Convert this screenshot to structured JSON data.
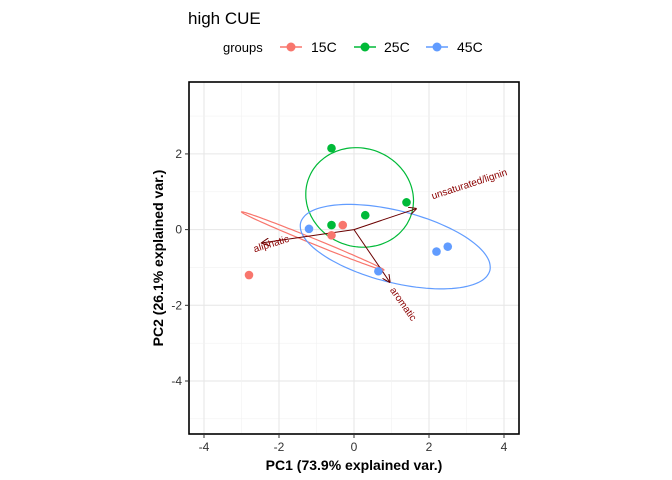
{
  "chart_data": {
    "type": "scatter",
    "title": "high CUE",
    "xlabel": "PC1 (73.9% explained var.)",
    "ylabel": "PC2 (26.1% explained var.)",
    "xlim": [
      -4.4,
      4.4
    ],
    "ylim": [
      -5.4,
      3.9
    ],
    "x_ticks": [
      -4,
      -2,
      0,
      2,
      4
    ],
    "y_ticks": [
      -4,
      -2,
      0,
      2
    ],
    "x_tick_labels": [
      "-4",
      "-2",
      "0",
      "2",
      "4"
    ],
    "y_tick_labels": [
      "-4",
      "-2",
      "0",
      "2"
    ],
    "grid": true,
    "legend": {
      "title": "groups",
      "placement": "top"
    },
    "series": [
      {
        "name": "15C",
        "color": "#F8766D",
        "points": [
          [
            -2.8,
            -1.2
          ],
          [
            -0.6,
            -0.15
          ],
          [
            -0.3,
            0.12
          ]
        ],
        "ellipse": {
          "cx": -1.1,
          "cy": -0.3,
          "rx": 2.05,
          "ry": 0.07,
          "angle_deg": -22
        }
      },
      {
        "name": "25C",
        "color": "#00BA38",
        "points": [
          [
            -0.6,
            2.15
          ],
          [
            -0.6,
            0.12
          ],
          [
            0.3,
            0.38
          ],
          [
            1.4,
            0.72
          ]
        ],
        "ellipse": {
          "cx": 0.15,
          "cy": 0.85,
          "rx": 1.45,
          "ry": 1.3,
          "angle_deg": -18
        }
      },
      {
        "name": "45C",
        "color": "#619CFF",
        "points": [
          [
            -1.2,
            0.02
          ],
          [
            0.65,
            -1.1
          ],
          [
            2.2,
            -0.58
          ],
          [
            2.5,
            -0.45
          ]
        ],
        "ellipse": {
          "cx": 1.1,
          "cy": -0.45,
          "rx": 2.6,
          "ry": 0.95,
          "angle_deg": -14
        }
      }
    ],
    "arrows": [
      {
        "label": "unsaturated/lignin",
        "x": 1.65,
        "y": 0.55,
        "label_x": 2.1,
        "label_y": 0.8,
        "label_angle": -18
      },
      {
        "label": "aliphatic",
        "x": -2.45,
        "y": -0.35,
        "label_x": -2.65,
        "label_y": -0.6,
        "label_angle": -17
      },
      {
        "label": "aromatic",
        "x": 0.95,
        "y": -1.38,
        "label_x": 0.95,
        "label_y": -1.6,
        "label_angle": 55
      }
    ],
    "arrow_color": "#6b0000"
  }
}
